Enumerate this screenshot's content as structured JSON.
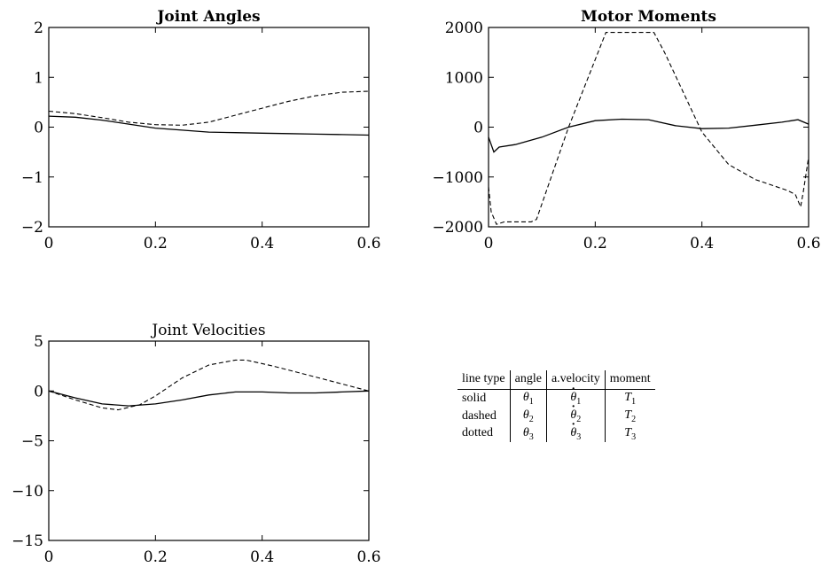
{
  "chart_data": [
    {
      "type": "line",
      "title": "Joint Angles",
      "title_bold": true,
      "xlim": [
        0,
        0.6
      ],
      "ylim": [
        -2,
        2
      ],
      "x_ticks": [
        "0",
        "0.2",
        "0.4",
        "0.6"
      ],
      "y_ticks": [
        "2",
        "1",
        "0",
        "−1",
        "−2"
      ],
      "series": [
        {
          "style": "solid",
          "x": [
            0,
            0.05,
            0.1,
            0.15,
            0.2,
            0.25,
            0.3,
            0.35,
            0.4,
            0.45,
            0.5,
            0.55,
            0.6
          ],
          "y": [
            0.22,
            0.2,
            0.14,
            0.06,
            -0.02,
            -0.06,
            -0.1,
            -0.11,
            -0.12,
            -0.13,
            -0.14,
            -0.15,
            -0.16
          ]
        },
        {
          "style": "dashed",
          "x": [
            0,
            0.05,
            0.1,
            0.15,
            0.2,
            0.25,
            0.3,
            0.35,
            0.4,
            0.45,
            0.5,
            0.55,
            0.6
          ],
          "y": [
            0.32,
            0.27,
            0.19,
            0.1,
            0.05,
            0.04,
            0.1,
            0.24,
            0.38,
            0.52,
            0.63,
            0.7,
            0.72
          ]
        }
      ]
    },
    {
      "type": "line",
      "title": "Motor Moments",
      "title_bold": true,
      "xlim": [
        0,
        0.6
      ],
      "ylim": [
        -2000,
        2000
      ],
      "x_ticks": [
        "0",
        "0.2",
        "0.4",
        "0.6"
      ],
      "y_ticks": [
        "2000",
        "1000",
        "0",
        "−1000",
        "−2000"
      ],
      "series": [
        {
          "style": "solid",
          "x": [
            0,
            0.01,
            0.02,
            0.05,
            0.1,
            0.15,
            0.2,
            0.25,
            0.3,
            0.35,
            0.4,
            0.45,
            0.5,
            0.55,
            0.58,
            0.6
          ],
          "y": [
            -200,
            -500,
            -400,
            -350,
            -200,
            0,
            130,
            160,
            150,
            30,
            -30,
            -20,
            40,
            100,
            150,
            60
          ]
        },
        {
          "style": "dashed",
          "x": [
            0,
            0.005,
            0.015,
            0.03,
            0.08,
            0.09,
            0.15,
            0.22,
            0.31,
            0.33,
            0.4,
            0.45,
            0.5,
            0.56,
            0.575,
            0.585,
            0.59,
            0.6
          ],
          "y": [
            -1200,
            -1700,
            -1950,
            -1900,
            -1900,
            -1850,
            0,
            1900,
            1900,
            1500,
            -100,
            -750,
            -1050,
            -1270,
            -1350,
            -1600,
            -1300,
            -600
          ]
        }
      ]
    },
    {
      "type": "line",
      "title": "Joint Velocities",
      "title_bold": false,
      "xlim": [
        0,
        0.6
      ],
      "ylim": [
        -15,
        5
      ],
      "x_ticks": [
        "0",
        "0.2",
        "0.4",
        "0.6"
      ],
      "y_ticks": [
        "5",
        "0",
        "−5",
        "−10",
        "−15"
      ],
      "series": [
        {
          "style": "solid",
          "x": [
            0,
            0.05,
            0.1,
            0.15,
            0.2,
            0.25,
            0.3,
            0.35,
            0.4,
            0.45,
            0.5,
            0.55,
            0.6
          ],
          "y": [
            0,
            -0.7,
            -1.3,
            -1.5,
            -1.3,
            -0.9,
            -0.4,
            -0.1,
            -0.1,
            -0.2,
            -0.2,
            -0.1,
            0
          ]
        },
        {
          "style": "dashed",
          "x": [
            0,
            0.05,
            0.1,
            0.13,
            0.17,
            0.2,
            0.25,
            0.3,
            0.35,
            0.37,
            0.42,
            0.5,
            0.55,
            0.6
          ],
          "y": [
            0,
            -0.9,
            -1.7,
            -1.9,
            -1.4,
            -0.5,
            1.3,
            2.6,
            3.1,
            3.1,
            2.5,
            1.4,
            0.7,
            0
          ]
        }
      ]
    }
  ],
  "legend_table": {
    "headers": [
      "line type",
      "angle",
      "a.velocity",
      "moment"
    ],
    "rows": [
      {
        "line_type": "solid",
        "angle": "θ",
        "velocity": "θ",
        "moment": "T",
        "index": "1"
      },
      {
        "line_type": "dashed",
        "angle": "θ",
        "velocity": "θ",
        "moment": "T",
        "index": "2"
      },
      {
        "line_type": "dotted",
        "angle": "θ",
        "velocity": "θ",
        "moment": "T",
        "index": "3"
      }
    ]
  }
}
